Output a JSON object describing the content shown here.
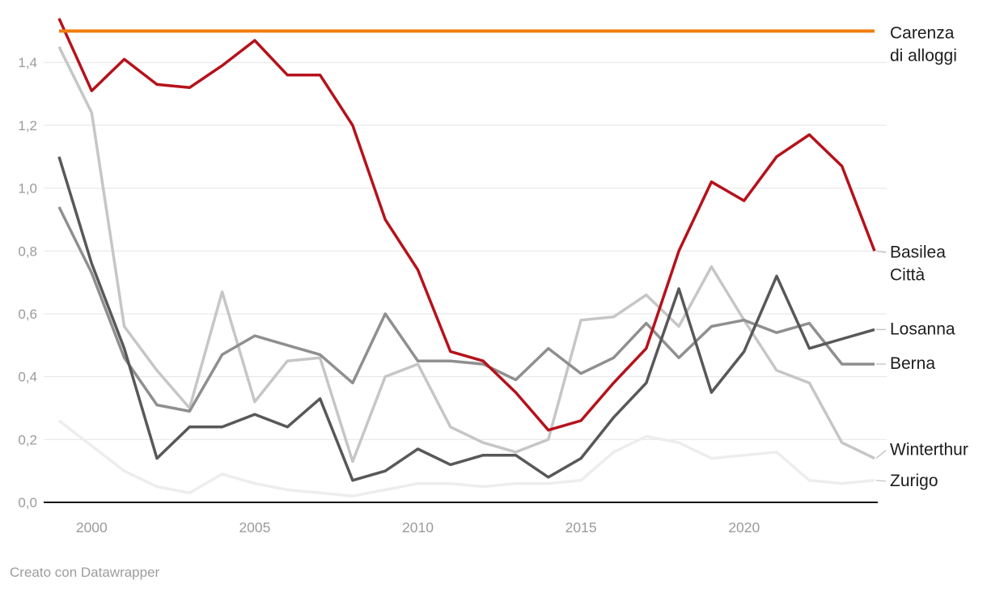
{
  "footer": {
    "credit": "Creato con Datawrapper"
  },
  "colors": {
    "background": "#ffffff",
    "gridline": "#e4e4e4",
    "axis_line": "#161616",
    "tick_text": "#9b9b9b",
    "label_text": "#1d1d1d",
    "connector": "#c9c9c9"
  },
  "chart_data": {
    "type": "line",
    "title": "",
    "xlabel": "",
    "ylabel": "",
    "x": [
      1999,
      2000,
      2001,
      2002,
      2003,
      2004,
      2005,
      2006,
      2007,
      2008,
      2009,
      2010,
      2011,
      2012,
      2013,
      2014,
      2015,
      2016,
      2017,
      2018,
      2019,
      2020,
      2021,
      2022,
      2023,
      2024
    ],
    "xticks": [
      2000,
      2005,
      2010,
      2015,
      2020
    ],
    "xtick_labels": [
      "2000",
      "2005",
      "2010",
      "2015",
      "2020"
    ],
    "ylim": [
      0.0,
      1.55
    ],
    "yticks": [
      0.0,
      0.2,
      0.4,
      0.6,
      0.8,
      1.0,
      1.2,
      1.4
    ],
    "ytick_labels": [
      "0,0",
      "0,2",
      "0,4",
      "0,6",
      "0,8",
      "1,0",
      "1,2",
      "1,4"
    ],
    "grid": "horizontal",
    "legend_position": "right-edge-labels",
    "series": [
      {
        "name": "Carenza di alloggi",
        "label_lines": [
          "Carenza",
          "di alloggi"
        ],
        "color": "#f07d0e",
        "width": 4,
        "values": [
          1.5,
          1.5,
          1.5,
          1.5,
          1.5,
          1.5,
          1.5,
          1.5,
          1.5,
          1.5,
          1.5,
          1.5,
          1.5,
          1.5,
          1.5,
          1.5,
          1.5,
          1.5,
          1.5,
          1.5,
          1.5,
          1.5,
          1.5,
          1.5,
          1.5,
          1.5
        ]
      },
      {
        "name": "Basilea Città",
        "label_lines": [
          "Basilea",
          "Città"
        ],
        "color": "#b5121b",
        "width": 3.5,
        "values": [
          1.54,
          1.31,
          1.41,
          1.33,
          1.32,
          1.39,
          1.47,
          1.36,
          1.36,
          1.2,
          0.9,
          0.74,
          0.48,
          0.45,
          0.35,
          0.23,
          0.26,
          0.38,
          0.49,
          0.8,
          1.02,
          0.96,
          1.1,
          1.17,
          1.07,
          0.8
        ]
      },
      {
        "name": "Losanna",
        "label_lines": [
          "Losanna"
        ],
        "color": "#58585a",
        "width": 3.5,
        "values": [
          1.1,
          0.76,
          0.49,
          0.14,
          0.24,
          0.24,
          0.28,
          0.24,
          0.33,
          0.07,
          0.1,
          0.17,
          0.12,
          0.15,
          0.15,
          0.08,
          0.14,
          0.27,
          0.38,
          0.68,
          0.35,
          0.48,
          0.72,
          0.49,
          0.52,
          0.55
        ]
      },
      {
        "name": "Berna",
        "label_lines": [
          "Berna"
        ],
        "color": "#8f8f8f",
        "width": 3.5,
        "values": [
          0.94,
          0.73,
          0.46,
          0.31,
          0.29,
          0.47,
          0.53,
          0.5,
          0.47,
          0.38,
          0.6,
          0.45,
          0.45,
          0.44,
          0.39,
          0.49,
          0.41,
          0.46,
          0.57,
          0.46,
          0.56,
          0.58,
          0.54,
          0.57,
          0.44,
          0.44
        ]
      },
      {
        "name": "Winterthur",
        "label_lines": [
          "Winterthur"
        ],
        "color": "#c6c6c6",
        "width": 3.5,
        "values": [
          1.45,
          1.24,
          0.56,
          0.42,
          0.3,
          0.67,
          0.32,
          0.45,
          0.46,
          0.13,
          0.4,
          0.44,
          0.24,
          0.19,
          0.16,
          0.2,
          0.58,
          0.59,
          0.66,
          0.56,
          0.75,
          0.58,
          0.42,
          0.38,
          0.19,
          0.14
        ]
      },
      {
        "name": "Zurigo",
        "label_lines": [
          "Zurigo"
        ],
        "color": "#ededed",
        "width": 3.5,
        "values": [
          0.26,
          0.18,
          0.1,
          0.05,
          0.03,
          0.09,
          0.06,
          0.04,
          0.03,
          0.02,
          0.04,
          0.06,
          0.06,
          0.05,
          0.06,
          0.06,
          0.07,
          0.16,
          0.21,
          0.19,
          0.14,
          0.15,
          0.16,
          0.07,
          0.06,
          0.07
        ]
      }
    ]
  }
}
